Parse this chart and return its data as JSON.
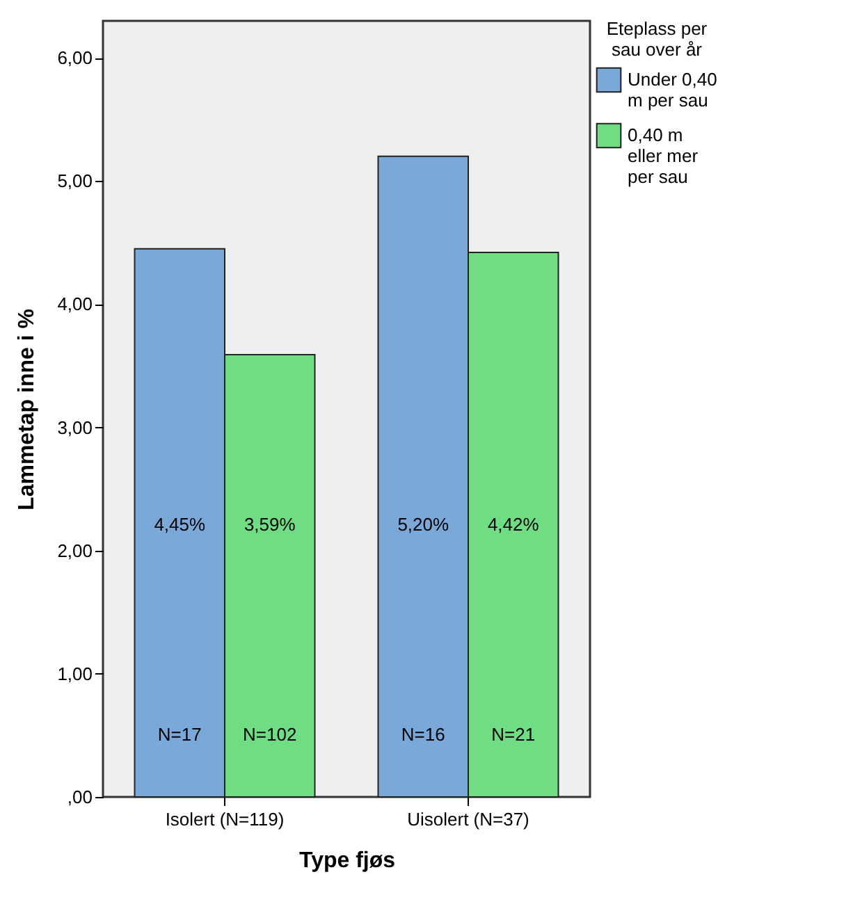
{
  "chart_data": {
    "type": "bar",
    "xlabel": "Type fjøs",
    "ylabel": "Lammetap inne i %",
    "legend_title": "Eteplass per sau over år",
    "legend": "top right",
    "categories": [
      "Isolert (N=119)",
      "Uisolert (N=37)"
    ],
    "series": [
      {
        "name": "Under 0,40 m per sau",
        "color": "#7aa8d8",
        "values": [
          4.45,
          5.2
        ],
        "value_labels": [
          "4,45%",
          "5,20%"
        ]
      },
      {
        "name": "0,40 m eller mer per sau",
        "color": "#70dc84",
        "values": [
          3.59,
          4.42
        ],
        "value_labels": [
          "3,59%",
          "4,42%"
        ]
      }
    ],
    "ylim": [
      0,
      6.3
    ],
    "yticks": [
      {
        "value": 0,
        "label": ",00"
      },
      {
        "value": 1,
        "label": "1,00"
      },
      {
        "value": 2,
        "label": "2,00"
      },
      {
        "value": 3,
        "label": "3,00"
      },
      {
        "value": 4,
        "label": "4,00"
      },
      {
        "value": 5,
        "label": "5,00"
      },
      {
        "value": 6,
        "label": "6,00"
      }
    ],
    "annotations": [
      {
        "text": "N=17",
        "x": "Isolert (N=119)",
        "y": 0.5
      },
      {
        "text": "N=102",
        "x": "Isolert (N=119)",
        "y": 0.5
      },
      {
        "text": "N=16",
        "x": "Uisolert (N=37)",
        "y": 0.5
      },
      {
        "text": "N=21",
        "x": "Uisolert (N=37)",
        "y": 0.5
      }
    ]
  }
}
